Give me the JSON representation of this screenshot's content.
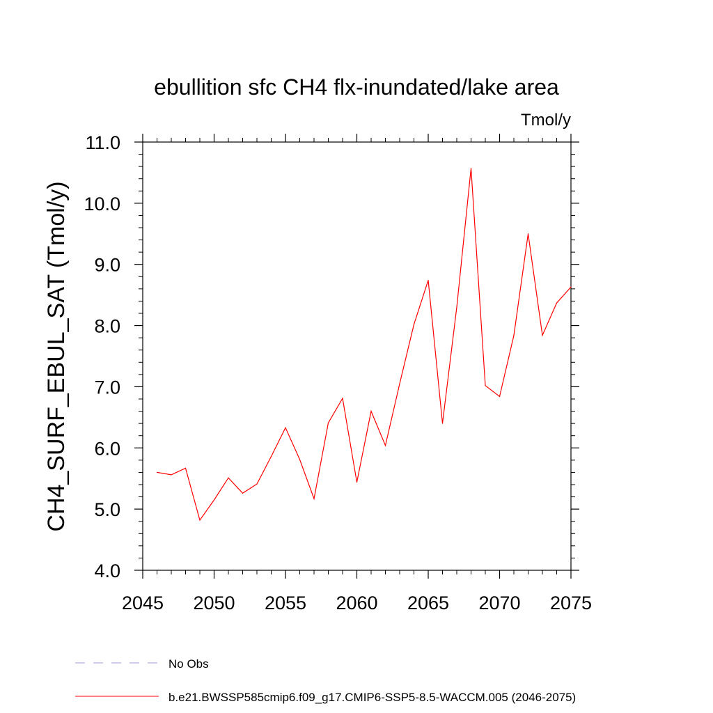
{
  "chart_data": {
    "type": "line",
    "title": "ebullition sfc CH4 flx-inundated/lake area",
    "units": "Tmol/y",
    "xlabel": "",
    "ylabel": "CH4_SURF_EBUL_SAT  (Tmol/y)",
    "xlim": [
      2045,
      2075
    ],
    "ylim": [
      4.0,
      11.0
    ],
    "x_ticks": [
      "2045",
      "2050",
      "2055",
      "2060",
      "2065",
      "2070",
      "2075"
    ],
    "y_ticks": [
      "4.0",
      "5.0",
      "6.0",
      "7.0",
      "8.0",
      "9.0",
      "10.0",
      "11.0"
    ],
    "grid": false,
    "legend_placement": "bottom",
    "series": [
      {
        "name": "b.e21.BWSSP585cmip6.f09_g17.CMIP6-SSP5-8.5-WACCM.005 (2046-2075)",
        "color": "#ff0000",
        "style": "solid",
        "x": [
          2046,
          2047,
          2048,
          2049,
          2050,
          2051,
          2052,
          2053,
          2054,
          2055,
          2056,
          2057,
          2058,
          2059,
          2060,
          2061,
          2062,
          2063,
          2064,
          2065,
          2066,
          2067,
          2068,
          2069,
          2070,
          2071,
          2072,
          2073,
          2074,
          2075
        ],
        "values": [
          5.6,
          5.56,
          5.67,
          4.82,
          5.15,
          5.51,
          5.26,
          5.41,
          5.86,
          6.33,
          5.81,
          5.17,
          6.41,
          6.81,
          5.44,
          6.6,
          6.04,
          7.05,
          8.02,
          8.74,
          6.4,
          8.3,
          10.57,
          7.02,
          6.84,
          7.84,
          9.5,
          7.84,
          8.37,
          8.63
        ]
      }
    ],
    "legend": [
      {
        "label": "No Obs",
        "color": "#9999dd",
        "style": "dashed"
      },
      {
        "label": "b.e21.BWSSP585cmip6.f09_g17.CMIP6-SSP5-8.5-WACCM.005 (2046-2075)",
        "color": "#ff0000",
        "style": "solid"
      }
    ]
  }
}
